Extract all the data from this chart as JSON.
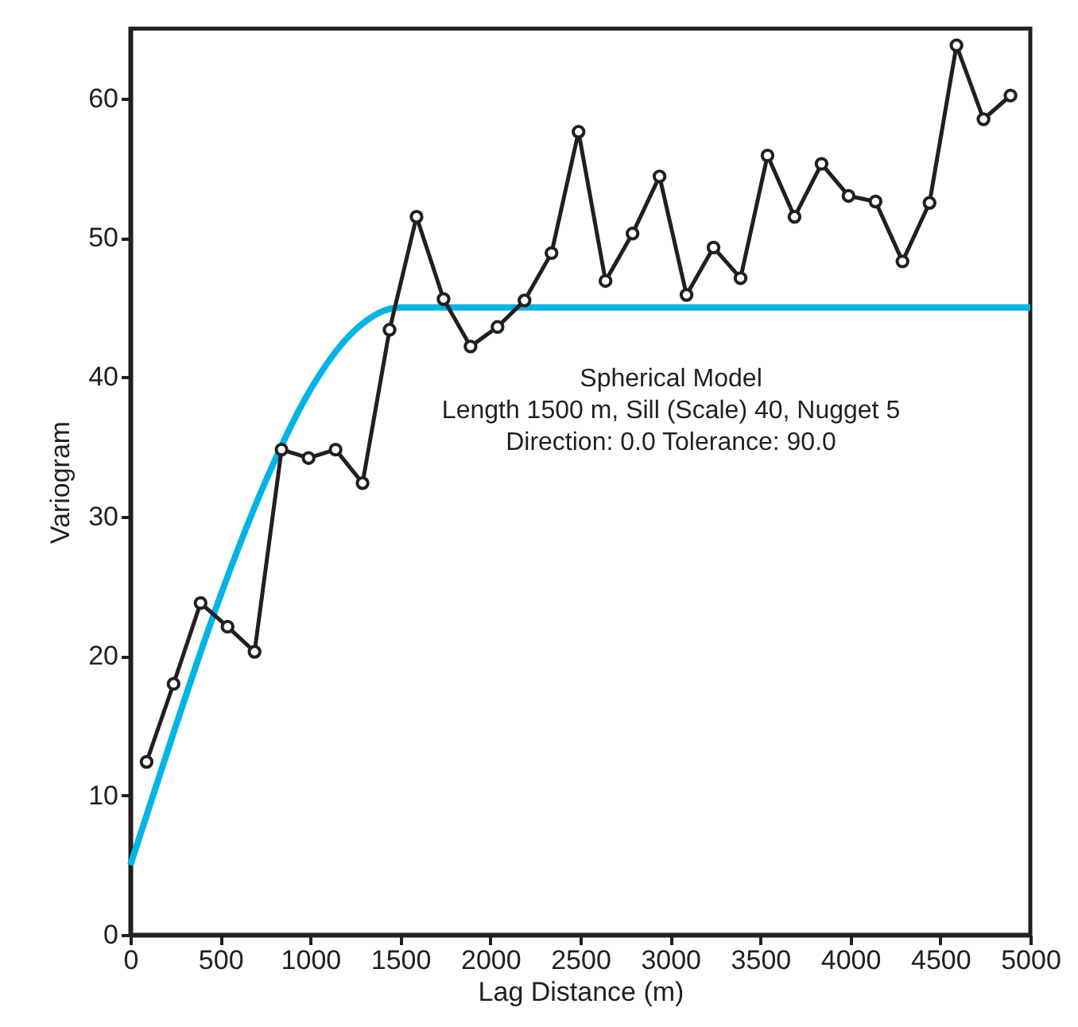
{
  "chart_data": {
    "type": "line",
    "xlabel": "Lag Distance (m)",
    "ylabel": "Variogram",
    "annotations": [
      "Spherical Model",
      "Length 1500 m, Sill (Scale) 40, Nugget 5",
      "Direction: 0.0   Tolerance: 90.0"
    ],
    "series": [
      {
        "color": "#00b4e6",
        "marker": "none",
        "x": [
          0,
          250,
          500,
          750,
          1000,
          1250,
          1500,
          5000
        ],
        "values": [
          5,
          14.9,
          24.3,
          32.5,
          39.1,
          43.4,
          45,
          45
        ]
      },
      {
        "color": "#231f20",
        "marker": "circle",
        "x": [
          90,
          240,
          390,
          540,
          690,
          840,
          990,
          1140,
          1290,
          1440,
          1590,
          1740,
          1890,
          2040,
          2190,
          2340,
          2490,
          2640,
          2790,
          2940,
          3090,
          3240,
          3390,
          3540,
          3690,
          3840,
          3990,
          4140,
          4290,
          4440,
          4590,
          4740,
          4890
        ],
        "values": [
          12.4,
          18.0,
          23.8,
          22.1,
          20.3,
          34.8,
          34.2,
          34.8,
          32.4,
          43.4,
          51.5,
          45.6,
          42.2,
          43.6,
          45.5,
          48.9,
          57.6,
          46.9,
          50.3,
          54.4,
          45.9,
          49.3,
          47.1,
          55.9,
          51.5,
          55.3,
          53.0,
          52.6,
          48.3,
          52.5,
          63.8,
          58.5,
          60.2
        ]
      }
    ],
    "xlim": [
      0,
      5000
    ],
    "xticks": [
      0,
      500,
      1000,
      1500,
      2000,
      2500,
      3000,
      3500,
      4000,
      4500,
      5000
    ],
    "ylim": [
      0,
      65
    ],
    "yticks": [
      0,
      10,
      20,
      30,
      40,
      50,
      60
    ],
    "grid": false
  }
}
